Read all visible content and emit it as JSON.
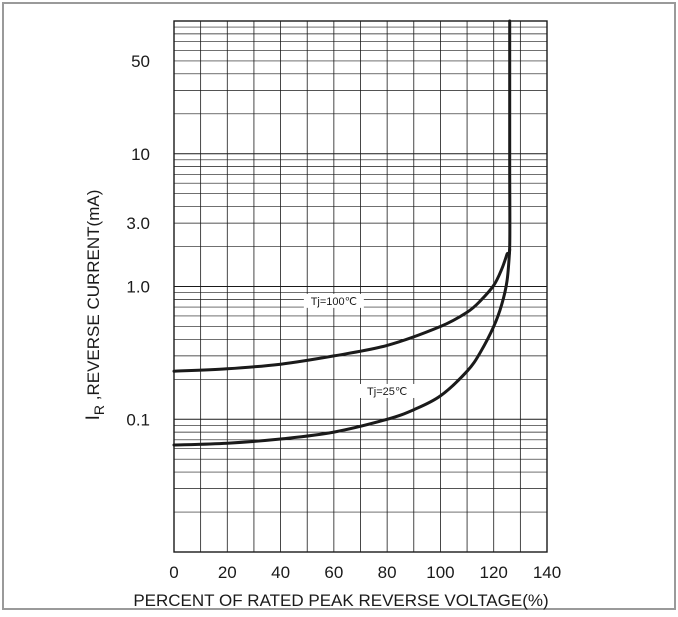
{
  "chart_data": {
    "type": "line",
    "xlabel": "PERCENT OF RATED PEAK REVERSE VOLTAGE(%)",
    "ylabel_main": "I",
    "ylabel_sub": "R",
    "ylabel_rest": " ,REVERSE CURRENT(mA)",
    "xlim": [
      0,
      140
    ],
    "ylim": [
      0.01,
      100
    ],
    "y_scale": "log",
    "grid": true,
    "x_ticks": [
      {
        "value": 0,
        "label": "0"
      },
      {
        "value": 20,
        "label": "20"
      },
      {
        "value": 40,
        "label": "40"
      },
      {
        "value": 60,
        "label": "60"
      },
      {
        "value": 80,
        "label": "80"
      },
      {
        "value": 100,
        "label": "100"
      },
      {
        "value": 120,
        "label": "120"
      },
      {
        "value": 140,
        "label": "140"
      }
    ],
    "y_ticks": [
      {
        "value": 50,
        "label": "50"
      },
      {
        "value": 10,
        "label": "10"
      },
      {
        "value": 3.0,
        "label": "3.0"
      },
      {
        "value": 1.0,
        "label": "1.0"
      },
      {
        "value": 0.1,
        "label": "0.1"
      }
    ],
    "series": [
      {
        "name": "Tj=100℃",
        "x": [
          0,
          20,
          40,
          60,
          80,
          100,
          110,
          115,
          120,
          123,
          125,
          126,
          126,
          126,
          126
        ],
        "y": [
          0.23,
          0.24,
          0.26,
          0.3,
          0.36,
          0.5,
          0.64,
          0.78,
          1.02,
          1.35,
          1.75,
          2.0,
          8.0,
          30.0,
          100.0
        ],
        "label_at": [
          60,
          0.74
        ]
      },
      {
        "name": "Tj=25℃",
        "x": [
          0,
          20,
          40,
          60,
          80,
          90,
          100,
          110,
          115,
          120,
          123,
          125,
          126
        ],
        "y": [
          0.064,
          0.066,
          0.071,
          0.08,
          0.1,
          0.118,
          0.15,
          0.23,
          0.32,
          0.5,
          0.73,
          1.1,
          1.9
        ],
        "label_at": [
          80,
          0.155
        ]
      }
    ]
  }
}
